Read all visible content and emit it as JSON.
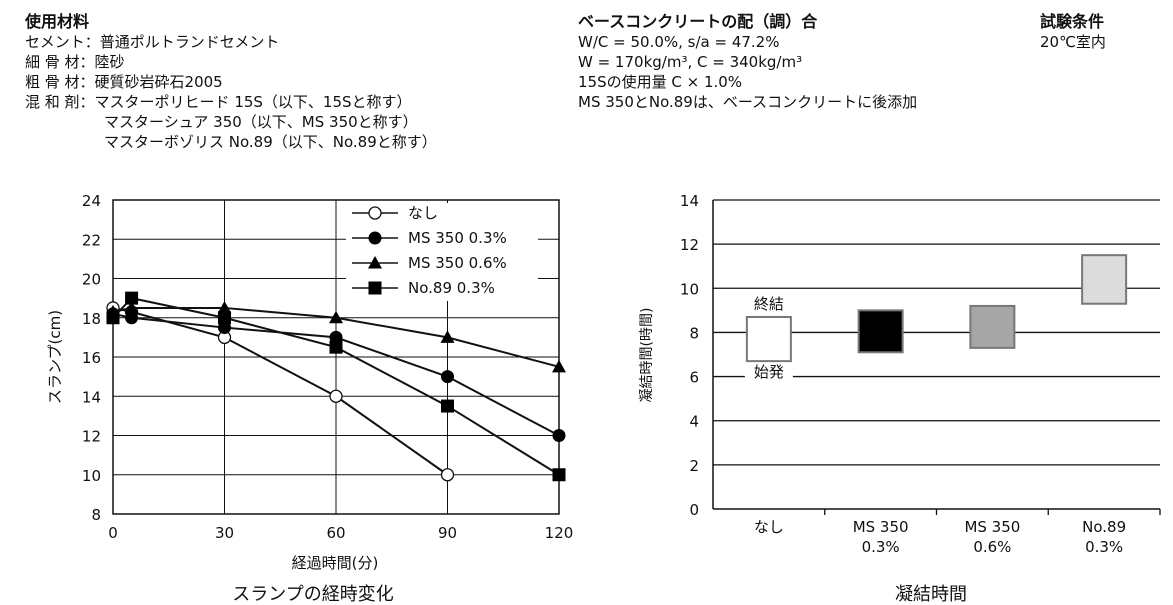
{
  "materials": {
    "heading": "使用材料",
    "rows": [
      {
        "label": "セメント：",
        "value": "普通ポルトランドセメント"
      },
      {
        "label": "細 骨 材：",
        "value": "陸砂"
      },
      {
        "label": "粗 骨 材：",
        "value": "硬質砂岩砕石2005"
      },
      {
        "label": "混 和 剤：",
        "value": "マスターポリヒード 15S（以下、15Sと称す）"
      }
    ],
    "continuation": [
      "マスターシュア 350（以下、MS 350と称す）",
      "マスターボゾリス No.89（以下、No.89と称す）"
    ]
  },
  "mix": {
    "heading": "ベースコンクリートの配（調）合",
    "lines": [
      "W/C = 50.0%, s/a = 47.2%",
      "W = 170kg/m³, C = 340kg/m³",
      "15Sの使用量 C × 1.0%",
      "MS 350とNo.89は、ベースコンクリートに後添加"
    ]
  },
  "conditions": {
    "heading": "試験条件",
    "line": "20℃室内"
  },
  "chart_data": [
    {
      "type": "line",
      "title": "スランプの経時変化",
      "xlabel": "経過時間(分)",
      "ylabel": "スランプ(cm)",
      "xlim": [
        0,
        120
      ],
      "ylim": [
        8,
        24
      ],
      "xticks": [
        0,
        30,
        60,
        90,
        120
      ],
      "yticks": [
        8,
        10,
        12,
        14,
        16,
        18,
        20,
        22,
        24
      ],
      "grid": true,
      "legend_position": "top-right",
      "series": [
        {
          "name": "なし",
          "marker": "open-circle",
          "x": [
            0,
            5,
            30,
            60,
            90
          ],
          "y": [
            18.5,
            18.3,
            17.0,
            14.0,
            10.0
          ]
        },
        {
          "name": "MS 350 0.3%",
          "marker": "filled-circle",
          "x": [
            0,
            5,
            30,
            60,
            90,
            120
          ],
          "y": [
            18.2,
            18.0,
            17.5,
            17.0,
            15.0,
            12.0
          ]
        },
        {
          "name": "MS 350 0.6%",
          "marker": "triangle",
          "x": [
            0,
            5,
            30,
            60,
            90,
            120
          ],
          "y": [
            18.3,
            18.5,
            18.5,
            18.0,
            17.0,
            15.5
          ]
        },
        {
          "name": "No.89 0.3%",
          "marker": "square",
          "x": [
            0,
            5,
            30,
            60,
            90,
            120
          ],
          "y": [
            18.0,
            19.0,
            18.0,
            16.5,
            13.5,
            10.0
          ]
        }
      ]
    },
    {
      "type": "bar",
      "subtype": "floating-range",
      "title": "凝結時間",
      "ylabel": "凝結時間(時間)",
      "ylim": [
        0,
        14
      ],
      "yticks": [
        0,
        2,
        4,
        6,
        8,
        10,
        12,
        14
      ],
      "grid": true,
      "categories": [
        [
          "なし"
        ],
        [
          "MS 350",
          "0.3%"
        ],
        [
          "MS 350",
          "0.6%"
        ],
        [
          "No.89",
          "0.3%"
        ]
      ],
      "initial_set": [
        6.7,
        7.1,
        7.3,
        9.3
      ],
      "final_set": [
        8.7,
        9.0,
        9.2,
        11.5
      ],
      "colors": [
        "#ffffff",
        "#000000",
        "#a6a6a6",
        "#dcdcdc"
      ],
      "annotations": {
        "final": "終結",
        "initial": "始発"
      }
    }
  ]
}
